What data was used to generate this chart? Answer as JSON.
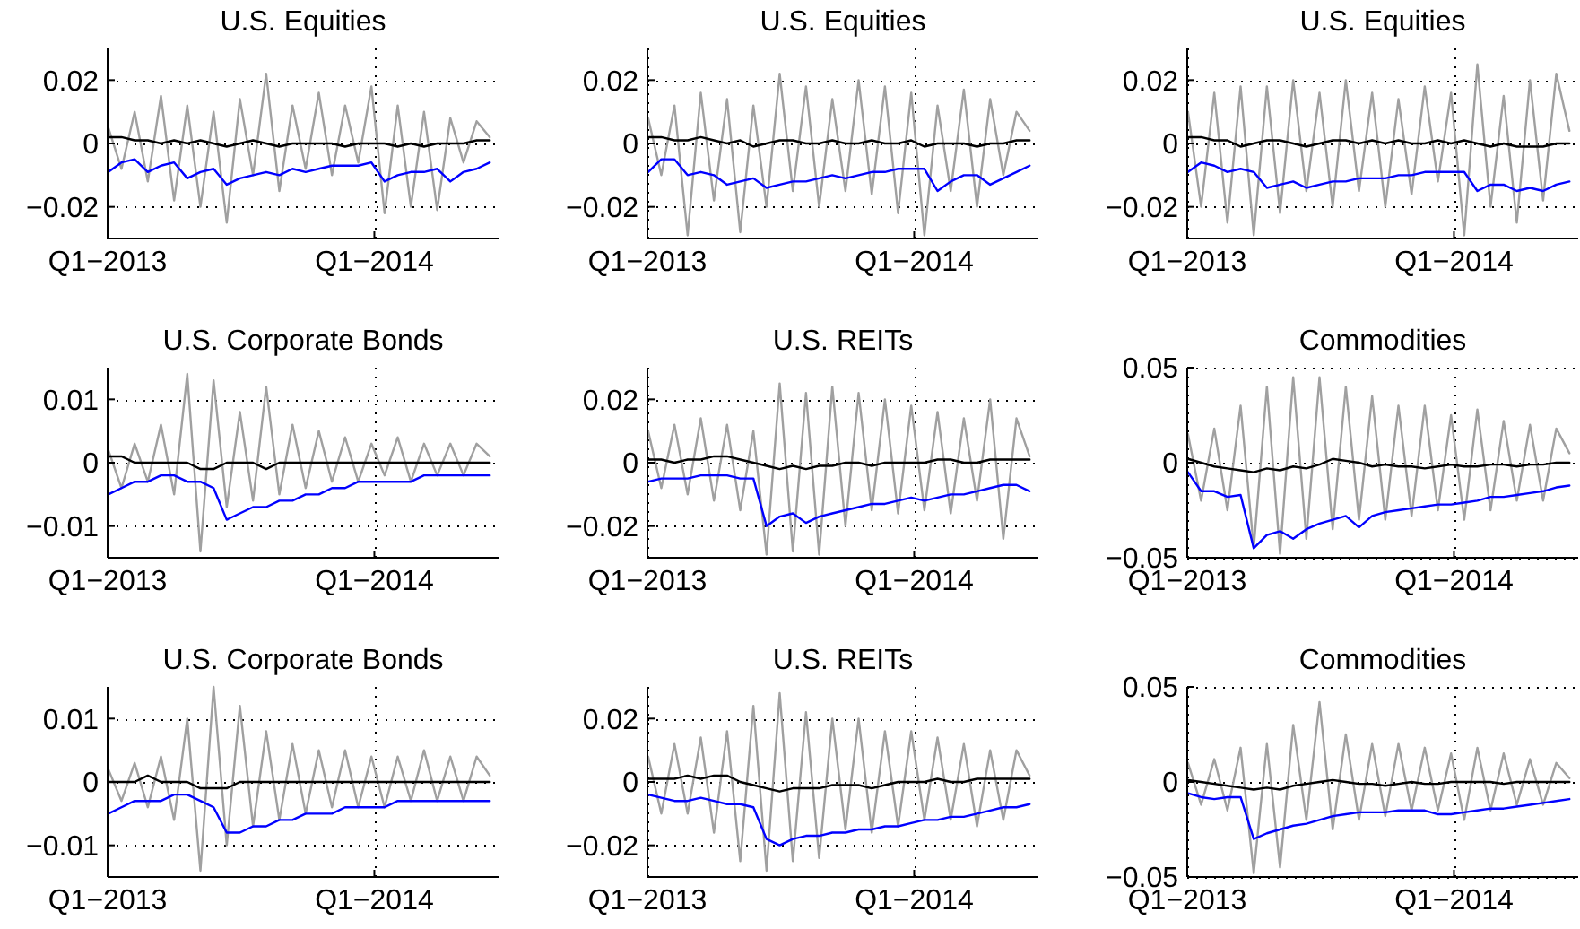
{
  "chart_data": [
    {
      "type": "line",
      "title": "U.S. Equities",
      "x": [
        "2013-01-02",
        "2013-01-20",
        "2013-02-07",
        "2013-02-25",
        "2013-03-15",
        "2013-04-02",
        "2013-04-20",
        "2013-05-08",
        "2013-05-26",
        "2013-06-13",
        "2013-07-01",
        "2013-07-19",
        "2013-08-06",
        "2013-08-24",
        "2013-09-11",
        "2013-09-29",
        "2013-10-17",
        "2013-11-04",
        "2013-11-22",
        "2013-12-10",
        "2013-12-28",
        "2014-01-15",
        "2014-02-02",
        "2014-02-20",
        "2014-03-10",
        "2014-03-28",
        "2014-04-15",
        "2014-05-03",
        "2014-05-21",
        "2014-06-08"
      ],
      "xlim": [
        "2013-01-01",
        "2014-06-20"
      ],
      "xticks": [
        {
          "value": "2013-01-01",
          "label": "Q1−2013"
        },
        {
          "value": "2014-01-01",
          "label": "Q1−2014"
        }
      ],
      "ylim": [
        -0.03,
        0.03
      ],
      "yticks": [
        {
          "value": -0.02,
          "label": "−0.02"
        },
        0,
        0.02
      ],
      "grid": true,
      "series": [
        {
          "color": "#a0a0a0",
          "values": [
            0.005,
            -0.008,
            0.01,
            -0.012,
            0.015,
            -0.018,
            0.012,
            -0.02,
            0.01,
            -0.025,
            0.014,
            -0.01,
            0.022,
            -0.015,
            0.012,
            -0.008,
            0.016,
            -0.01,
            0.012,
            -0.006,
            0.018,
            -0.022,
            0.012,
            -0.02,
            0.01,
            -0.021,
            0.008,
            -0.006,
            0.007,
            0.002
          ]
        },
        {
          "color": "#000000",
          "values": [
            0.002,
            0.002,
            0.001,
            0.001,
            0.0,
            0.001,
            0.0,
            0.001,
            0.0,
            -0.001,
            0.0,
            0.001,
            0.0,
            -0.001,
            0.0,
            0.0,
            0.0,
            0.0,
            -0.001,
            0.0,
            0.0,
            0.0,
            -0.001,
            0.0,
            -0.001,
            0.0,
            0.0,
            0.0,
            0.001,
            0.001
          ]
        },
        {
          "color": "#0000ff",
          "values": [
            -0.009,
            -0.006,
            -0.005,
            -0.009,
            -0.007,
            -0.006,
            -0.011,
            -0.009,
            -0.008,
            -0.013,
            -0.011,
            -0.01,
            -0.009,
            -0.01,
            -0.008,
            -0.009,
            -0.008,
            -0.007,
            -0.007,
            -0.007,
            -0.006,
            -0.012,
            -0.01,
            -0.009,
            -0.009,
            -0.008,
            -0.012,
            -0.009,
            -0.008,
            -0.006
          ]
        }
      ]
    },
    {
      "type": "line",
      "title": "U.S. Equities",
      "x": [
        "2013-01-02",
        "2013-01-20",
        "2013-02-07",
        "2013-02-25",
        "2013-03-15",
        "2013-04-02",
        "2013-04-20",
        "2013-05-08",
        "2013-05-26",
        "2013-06-13",
        "2013-07-01",
        "2013-07-19",
        "2013-08-06",
        "2013-08-24",
        "2013-09-11",
        "2013-09-29",
        "2013-10-17",
        "2013-11-04",
        "2013-11-22",
        "2013-12-10",
        "2013-12-28",
        "2014-01-15",
        "2014-02-02",
        "2014-02-20",
        "2014-03-10",
        "2014-03-28",
        "2014-04-15",
        "2014-05-03",
        "2014-05-21",
        "2014-06-08"
      ],
      "xlim": [
        "2013-01-01",
        "2014-06-20"
      ],
      "xticks": [
        {
          "value": "2013-01-01",
          "label": "Q1−2013"
        },
        {
          "value": "2014-01-01",
          "label": "Q1−2014"
        }
      ],
      "ylim": [
        -0.03,
        0.03
      ],
      "yticks": [
        {
          "value": -0.02,
          "label": "−0.02"
        },
        0,
        0.02
      ],
      "grid": true,
      "series": [
        {
          "color": "#a0a0a0",
          "values": [
            0.008,
            -0.01,
            0.012,
            -0.029,
            0.016,
            -0.018,
            0.014,
            -0.028,
            0.012,
            -0.02,
            0.022,
            -0.015,
            0.018,
            -0.02,
            0.014,
            -0.015,
            0.02,
            -0.016,
            0.018,
            -0.022,
            0.016,
            -0.029,
            0.012,
            -0.015,
            0.017,
            -0.02,
            0.014,
            -0.01,
            0.01,
            0.004
          ]
        },
        {
          "color": "#000000",
          "values": [
            0.002,
            0.002,
            0.001,
            0.001,
            0.002,
            0.001,
            0.0,
            0.001,
            -0.001,
            0.0,
            0.001,
            0.001,
            0.0,
            0.0,
            0.001,
            0.0,
            0.0,
            0.001,
            0.0,
            0.0,
            0.001,
            -0.001,
            0.0,
            0.0,
            0.0,
            -0.001,
            0.0,
            0.0,
            0.001,
            0.001
          ]
        },
        {
          "color": "#0000ff",
          "values": [
            -0.009,
            -0.005,
            -0.005,
            -0.01,
            -0.009,
            -0.01,
            -0.013,
            -0.012,
            -0.011,
            -0.014,
            -0.013,
            -0.012,
            -0.012,
            -0.011,
            -0.01,
            -0.011,
            -0.01,
            -0.009,
            -0.009,
            -0.008,
            -0.008,
            -0.008,
            -0.015,
            -0.012,
            -0.01,
            -0.01,
            -0.013,
            -0.011,
            -0.009,
            -0.007
          ]
        }
      ]
    },
    {
      "type": "line",
      "title": "U.S. Equities",
      "x": [
        "2013-01-02",
        "2013-01-20",
        "2013-02-07",
        "2013-02-25",
        "2013-03-15",
        "2013-04-02",
        "2013-04-20",
        "2013-05-08",
        "2013-05-26",
        "2013-06-13",
        "2013-07-01",
        "2013-07-19",
        "2013-08-06",
        "2013-08-24",
        "2013-09-11",
        "2013-09-29",
        "2013-10-17",
        "2013-11-04",
        "2013-11-22",
        "2013-12-10",
        "2013-12-28",
        "2014-01-15",
        "2014-02-02",
        "2014-02-20",
        "2014-03-10",
        "2014-03-28",
        "2014-04-15",
        "2014-05-03",
        "2014-05-21",
        "2014-06-08"
      ],
      "xlim": [
        "2013-01-01",
        "2014-06-20"
      ],
      "xticks": [
        {
          "value": "2013-01-01",
          "label": "Q1−2013"
        },
        {
          "value": "2014-01-01",
          "label": "Q1−2014"
        }
      ],
      "ylim": [
        -0.03,
        0.03
      ],
      "yticks": [
        {
          "value": -0.02,
          "label": "−0.02"
        },
        0,
        0.02
      ],
      "grid": true,
      "series": [
        {
          "color": "#a0a0a0",
          "values": [
            0.01,
            -0.02,
            0.016,
            -0.025,
            0.018,
            -0.029,
            0.018,
            -0.022,
            0.02,
            -0.015,
            0.016,
            -0.02,
            0.02,
            -0.015,
            0.016,
            -0.02,
            0.014,
            -0.016,
            0.018,
            -0.012,
            0.016,
            -0.029,
            0.025,
            -0.02,
            0.015,
            -0.025,
            0.02,
            -0.018,
            0.022,
            0.004
          ]
        },
        {
          "color": "#000000",
          "values": [
            0.002,
            0.002,
            0.001,
            0.001,
            -0.001,
            0.0,
            0.001,
            0.001,
            0.0,
            -0.001,
            0.0,
            0.001,
            0.001,
            0.0,
            0.001,
            0.0,
            0.001,
            0.0,
            0.0,
            0.001,
            0.0,
            0.001,
            0.0,
            -0.001,
            0.0,
            -0.001,
            -0.001,
            -0.001,
            0.0,
            0.0
          ]
        },
        {
          "color": "#0000ff",
          "values": [
            -0.009,
            -0.006,
            -0.007,
            -0.009,
            -0.008,
            -0.009,
            -0.014,
            -0.013,
            -0.012,
            -0.014,
            -0.013,
            -0.012,
            -0.012,
            -0.011,
            -0.011,
            -0.011,
            -0.01,
            -0.01,
            -0.009,
            -0.009,
            -0.009,
            -0.009,
            -0.015,
            -0.013,
            -0.013,
            -0.015,
            -0.014,
            -0.015,
            -0.013,
            -0.012
          ]
        }
      ]
    },
    {
      "type": "line",
      "title": "U.S. Corporate Bonds",
      "x": [
        "2013-01-02",
        "2013-01-20",
        "2013-02-07",
        "2013-02-25",
        "2013-03-15",
        "2013-04-02",
        "2013-04-20",
        "2013-05-08",
        "2013-05-26",
        "2013-06-13",
        "2013-07-01",
        "2013-07-19",
        "2013-08-06",
        "2013-08-24",
        "2013-09-11",
        "2013-09-29",
        "2013-10-17",
        "2013-11-04",
        "2013-11-22",
        "2013-12-10",
        "2013-12-28",
        "2014-01-15",
        "2014-02-02",
        "2014-02-20",
        "2014-03-10",
        "2014-03-28",
        "2014-04-15",
        "2014-05-03",
        "2014-05-21",
        "2014-06-08"
      ],
      "xlim": [
        "2013-01-01",
        "2014-06-20"
      ],
      "xticks": [
        {
          "value": "2013-01-01",
          "label": "Q1−2013"
        },
        {
          "value": "2014-01-01",
          "label": "Q1−2014"
        }
      ],
      "ylim": [
        -0.015,
        0.015
      ],
      "yticks": [
        {
          "value": -0.01,
          "label": "−0.01"
        },
        0,
        0.01
      ],
      "grid": true,
      "series": [
        {
          "color": "#a0a0a0",
          "values": [
            0.002,
            -0.004,
            0.003,
            -0.003,
            0.006,
            -0.005,
            0.014,
            -0.014,
            0.013,
            -0.007,
            0.008,
            -0.006,
            0.012,
            -0.005,
            0.006,
            -0.004,
            0.005,
            -0.003,
            0.004,
            -0.003,
            0.003,
            -0.002,
            0.004,
            -0.003,
            0.003,
            -0.002,
            0.003,
            -0.002,
            0.003,
            0.001
          ]
        },
        {
          "color": "#000000",
          "values": [
            0.001,
            0.001,
            0.0,
            0.0,
            0.0,
            0.0,
            0.0,
            -0.001,
            -0.001,
            0.0,
            0.0,
            0.0,
            -0.001,
            0.0,
            0.0,
            0.0,
            0.0,
            0.0,
            0.0,
            0.0,
            0.0,
            0.0,
            0.0,
            0.0,
            0.0,
            0.0,
            0.0,
            0.0,
            0.0,
            0.0
          ]
        },
        {
          "color": "#0000ff",
          "values": [
            -0.005,
            -0.004,
            -0.003,
            -0.003,
            -0.002,
            -0.002,
            -0.003,
            -0.003,
            -0.004,
            -0.009,
            -0.008,
            -0.007,
            -0.007,
            -0.006,
            -0.006,
            -0.005,
            -0.005,
            -0.004,
            -0.004,
            -0.003,
            -0.003,
            -0.003,
            -0.003,
            -0.003,
            -0.002,
            -0.002,
            -0.002,
            -0.002,
            -0.002,
            -0.002
          ]
        }
      ]
    },
    {
      "type": "line",
      "title": "U.S. REITs",
      "x": [
        "2013-01-02",
        "2013-01-20",
        "2013-02-07",
        "2013-02-25",
        "2013-03-15",
        "2013-04-02",
        "2013-04-20",
        "2013-05-08",
        "2013-05-26",
        "2013-06-13",
        "2013-07-01",
        "2013-07-19",
        "2013-08-06",
        "2013-08-24",
        "2013-09-11",
        "2013-09-29",
        "2013-10-17",
        "2013-11-04",
        "2013-11-22",
        "2013-12-10",
        "2013-12-28",
        "2014-01-15",
        "2014-02-02",
        "2014-02-20",
        "2014-03-10",
        "2014-03-28",
        "2014-04-15",
        "2014-05-03",
        "2014-05-21",
        "2014-06-08"
      ],
      "xlim": [
        "2013-01-01",
        "2014-06-20"
      ],
      "xticks": [
        {
          "value": "2013-01-01",
          "label": "Q1−2013"
        },
        {
          "value": "2014-01-01",
          "label": "Q1−2014"
        }
      ],
      "ylim": [
        -0.03,
        0.03
      ],
      "yticks": [
        {
          "value": -0.02,
          "label": "−0.02"
        },
        0,
        0.02
      ],
      "grid": true,
      "series": [
        {
          "color": "#a0a0a0",
          "values": [
            0.01,
            -0.008,
            0.012,
            -0.01,
            0.014,
            -0.012,
            0.012,
            -0.015,
            0.01,
            -0.029,
            0.025,
            -0.028,
            0.022,
            -0.029,
            0.024,
            -0.02,
            0.022,
            -0.015,
            0.02,
            -0.016,
            0.018,
            -0.015,
            0.016,
            -0.016,
            0.014,
            -0.012,
            0.02,
            -0.024,
            0.014,
            0.002
          ]
        },
        {
          "color": "#000000",
          "values": [
            0.001,
            0.001,
            0.0,
            0.001,
            0.001,
            0.002,
            0.002,
            0.001,
            0.0,
            -0.001,
            -0.002,
            -0.001,
            -0.002,
            -0.001,
            -0.001,
            0.0,
            0.0,
            -0.001,
            0.0,
            0.0,
            0.0,
            0.0,
            0.001,
            0.001,
            0.0,
            0.0,
            0.001,
            0.001,
            0.001,
            0.001
          ]
        },
        {
          "color": "#0000ff",
          "values": [
            -0.006,
            -0.005,
            -0.005,
            -0.005,
            -0.004,
            -0.004,
            -0.004,
            -0.005,
            -0.005,
            -0.02,
            -0.017,
            -0.016,
            -0.019,
            -0.017,
            -0.016,
            -0.015,
            -0.014,
            -0.013,
            -0.013,
            -0.012,
            -0.011,
            -0.012,
            -0.011,
            -0.01,
            -0.01,
            -0.009,
            -0.008,
            -0.007,
            -0.007,
            -0.009
          ]
        }
      ]
    },
    {
      "type": "line",
      "title": "Commodities",
      "x": [
        "2013-01-02",
        "2013-01-20",
        "2013-02-07",
        "2013-02-25",
        "2013-03-15",
        "2013-04-02",
        "2013-04-20",
        "2013-05-08",
        "2013-05-26",
        "2013-06-13",
        "2013-07-01",
        "2013-07-19",
        "2013-08-06",
        "2013-08-24",
        "2013-09-11",
        "2013-09-29",
        "2013-10-17",
        "2013-11-04",
        "2013-11-22",
        "2013-12-10",
        "2013-12-28",
        "2014-01-15",
        "2014-02-02",
        "2014-02-20",
        "2014-03-10",
        "2014-03-28",
        "2014-04-15",
        "2014-05-03",
        "2014-05-21",
        "2014-06-08"
      ],
      "xlim": [
        "2013-01-01",
        "2014-06-20"
      ],
      "xticks": [
        {
          "value": "2013-01-01",
          "label": "Q1−2013"
        },
        {
          "value": "2014-01-01",
          "label": "Q1−2014"
        }
      ],
      "ylim": [
        -0.05,
        0.05
      ],
      "yticks": [
        {
          "value": -0.05,
          "label": "−0.05"
        },
        0,
        0.05
      ],
      "grid": true,
      "series": [
        {
          "color": "#a0a0a0",
          "values": [
            0.015,
            -0.02,
            0.018,
            -0.025,
            0.03,
            -0.045,
            0.04,
            -0.048,
            0.045,
            -0.04,
            0.045,
            -0.035,
            0.04,
            -0.03,
            0.035,
            -0.03,
            0.03,
            -0.028,
            0.03,
            -0.025,
            0.025,
            -0.03,
            0.028,
            -0.025,
            0.022,
            -0.02,
            0.02,
            -0.02,
            0.018,
            0.005
          ]
        },
        {
          "color": "#000000",
          "values": [
            0.002,
            0.0,
            -0.002,
            -0.003,
            -0.004,
            -0.005,
            -0.003,
            -0.004,
            -0.002,
            -0.003,
            -0.001,
            0.002,
            0.001,
            0.0,
            -0.002,
            -0.001,
            -0.002,
            -0.002,
            -0.003,
            -0.002,
            -0.001,
            -0.002,
            -0.002,
            -0.001,
            -0.001,
            -0.002,
            -0.001,
            -0.001,
            0.0,
            0.0
          ]
        },
        {
          "color": "#0000ff",
          "values": [
            -0.005,
            -0.015,
            -0.015,
            -0.018,
            -0.017,
            -0.045,
            -0.038,
            -0.036,
            -0.04,
            -0.035,
            -0.032,
            -0.03,
            -0.028,
            -0.034,
            -0.028,
            -0.026,
            -0.025,
            -0.024,
            -0.023,
            -0.022,
            -0.022,
            -0.021,
            -0.02,
            -0.018,
            -0.018,
            -0.017,
            -0.016,
            -0.015,
            -0.013,
            -0.012
          ]
        }
      ]
    },
    {
      "type": "line",
      "title": "U.S. Corporate Bonds",
      "x": [
        "2013-01-02",
        "2013-01-20",
        "2013-02-07",
        "2013-02-25",
        "2013-03-15",
        "2013-04-02",
        "2013-04-20",
        "2013-05-08",
        "2013-05-26",
        "2013-06-13",
        "2013-07-01",
        "2013-07-19",
        "2013-08-06",
        "2013-08-24",
        "2013-09-11",
        "2013-09-29",
        "2013-10-17",
        "2013-11-04",
        "2013-11-22",
        "2013-12-10",
        "2013-12-28",
        "2014-01-15",
        "2014-02-02",
        "2014-02-20",
        "2014-03-10",
        "2014-03-28",
        "2014-04-15",
        "2014-05-03",
        "2014-05-21",
        "2014-06-08"
      ],
      "xlim": [
        "2013-01-01",
        "2014-06-20"
      ],
      "xticks": [
        {
          "value": "2013-01-01",
          "label": "Q1−2013"
        },
        {
          "value": "2014-01-01",
          "label": "Q1−2014"
        }
      ],
      "ylim": [
        -0.015,
        0.015
      ],
      "yticks": [
        {
          "value": -0.01,
          "label": "−0.01"
        },
        0,
        0.01
      ],
      "grid": true,
      "series": [
        {
          "color": "#a0a0a0",
          "values": [
            0.002,
            -0.003,
            0.003,
            -0.004,
            0.004,
            -0.006,
            0.01,
            -0.014,
            0.015,
            -0.01,
            0.012,
            -0.007,
            0.008,
            -0.006,
            0.006,
            -0.005,
            0.005,
            -0.004,
            0.005,
            -0.004,
            0.004,
            -0.004,
            0.004,
            -0.003,
            0.005,
            -0.003,
            0.004,
            -0.003,
            0.004,
            0.001
          ]
        },
        {
          "color": "#000000",
          "values": [
            0.0,
            0.0,
            0.0,
            0.001,
            0.0,
            0.0,
            0.0,
            -0.001,
            -0.001,
            -0.001,
            0.0,
            0.0,
            0.0,
            0.0,
            0.0,
            0.0,
            0.0,
            0.0,
            0.0,
            0.0,
            0.0,
            0.0,
            0.0,
            0.0,
            0.0,
            0.0,
            0.0,
            0.0,
            0.0,
            0.0
          ]
        },
        {
          "color": "#0000ff",
          "values": [
            -0.005,
            -0.004,
            -0.003,
            -0.003,
            -0.003,
            -0.002,
            -0.002,
            -0.003,
            -0.004,
            -0.008,
            -0.008,
            -0.007,
            -0.007,
            -0.006,
            -0.006,
            -0.005,
            -0.005,
            -0.005,
            -0.004,
            -0.004,
            -0.004,
            -0.004,
            -0.003,
            -0.003,
            -0.003,
            -0.003,
            -0.003,
            -0.003,
            -0.003,
            -0.003
          ]
        }
      ]
    },
    {
      "type": "line",
      "title": "U.S. REITs",
      "x": [
        "2013-01-02",
        "2013-01-20",
        "2013-02-07",
        "2013-02-25",
        "2013-03-15",
        "2013-04-02",
        "2013-04-20",
        "2013-05-08",
        "2013-05-26",
        "2013-06-13",
        "2013-07-01",
        "2013-07-19",
        "2013-08-06",
        "2013-08-24",
        "2013-09-11",
        "2013-09-29",
        "2013-10-17",
        "2013-11-04",
        "2013-11-22",
        "2013-12-10",
        "2013-12-28",
        "2014-01-15",
        "2014-02-02",
        "2014-02-20",
        "2014-03-10",
        "2014-03-28",
        "2014-04-15",
        "2014-05-03",
        "2014-05-21",
        "2014-06-08"
      ],
      "xlim": [
        "2013-01-01",
        "2014-06-20"
      ],
      "xticks": [
        {
          "value": "2013-01-01",
          "label": "Q1−2013"
        },
        {
          "value": "2014-01-01",
          "label": "Q1−2014"
        }
      ],
      "ylim": [
        -0.03,
        0.03
      ],
      "yticks": [
        {
          "value": -0.02,
          "label": "−0.02"
        },
        0,
        0.02
      ],
      "grid": true,
      "series": [
        {
          "color": "#a0a0a0",
          "values": [
            0.008,
            -0.01,
            0.012,
            -0.01,
            0.014,
            -0.016,
            0.016,
            -0.025,
            0.024,
            -0.028,
            0.028,
            -0.025,
            0.022,
            -0.024,
            0.02,
            -0.015,
            0.02,
            -0.016,
            0.016,
            -0.014,
            0.016,
            -0.012,
            0.014,
            -0.012,
            0.012,
            -0.014,
            0.01,
            -0.012,
            0.01,
            0.002
          ]
        },
        {
          "color": "#000000",
          "values": [
            0.001,
            0.001,
            0.001,
            0.002,
            0.001,
            0.002,
            0.002,
            0.0,
            -0.001,
            -0.002,
            -0.003,
            -0.002,
            -0.002,
            -0.002,
            -0.001,
            -0.001,
            -0.001,
            -0.002,
            -0.001,
            0.0,
            0.0,
            0.0,
            0.001,
            0.0,
            0.0,
            0.001,
            0.001,
            0.001,
            0.001,
            0.001
          ]
        },
        {
          "color": "#0000ff",
          "values": [
            -0.004,
            -0.005,
            -0.006,
            -0.006,
            -0.005,
            -0.006,
            -0.007,
            -0.007,
            -0.008,
            -0.018,
            -0.02,
            -0.018,
            -0.017,
            -0.017,
            -0.016,
            -0.016,
            -0.015,
            -0.015,
            -0.014,
            -0.014,
            -0.013,
            -0.012,
            -0.012,
            -0.011,
            -0.011,
            -0.01,
            -0.009,
            -0.008,
            -0.008,
            -0.007
          ]
        }
      ]
    },
    {
      "type": "line",
      "title": "Commodities",
      "x": [
        "2013-01-02",
        "2013-01-20",
        "2013-02-07",
        "2013-02-25",
        "2013-03-15",
        "2013-04-02",
        "2013-04-20",
        "2013-05-08",
        "2013-05-26",
        "2013-06-13",
        "2013-07-01",
        "2013-07-19",
        "2013-08-06",
        "2013-08-24",
        "2013-09-11",
        "2013-09-29",
        "2013-10-17",
        "2013-11-04",
        "2013-11-22",
        "2013-12-10",
        "2013-12-28",
        "2014-01-15",
        "2014-02-02",
        "2014-02-20",
        "2014-03-10",
        "2014-03-28",
        "2014-04-15",
        "2014-05-03",
        "2014-05-21",
        "2014-06-08"
      ],
      "xlim": [
        "2013-01-01",
        "2014-06-20"
      ],
      "xticks": [
        {
          "value": "2013-01-01",
          "label": "Q1−2013"
        },
        {
          "value": "2014-01-01",
          "label": "Q1−2014"
        }
      ],
      "ylim": [
        -0.05,
        0.05
      ],
      "yticks": [
        {
          "value": -0.05,
          "label": "−0.05"
        },
        0,
        0.05
      ],
      "grid": true,
      "series": [
        {
          "color": "#a0a0a0",
          "values": [
            0.01,
            -0.012,
            0.012,
            -0.015,
            0.018,
            -0.048,
            0.02,
            -0.045,
            0.03,
            -0.02,
            0.042,
            -0.025,
            0.025,
            -0.02,
            0.02,
            -0.018,
            0.02,
            -0.015,
            0.018,
            -0.015,
            0.015,
            -0.02,
            0.018,
            -0.015,
            0.015,
            -0.012,
            0.012,
            -0.012,
            0.01,
            0.002
          ]
        },
        {
          "color": "#000000",
          "values": [
            0.001,
            0.0,
            -0.001,
            -0.002,
            -0.003,
            -0.004,
            -0.003,
            -0.004,
            -0.002,
            -0.001,
            0.0,
            0.001,
            0.0,
            -0.001,
            -0.001,
            -0.002,
            -0.001,
            0.0,
            -0.001,
            -0.001,
            0.0,
            0.0,
            0.0,
            0.0,
            -0.001,
            0.0,
            0.0,
            0.0,
            0.0,
            0.0
          ]
        },
        {
          "color": "#0000ff",
          "values": [
            -0.006,
            -0.008,
            -0.009,
            -0.008,
            -0.008,
            -0.03,
            -0.027,
            -0.025,
            -0.023,
            -0.022,
            -0.02,
            -0.018,
            -0.017,
            -0.016,
            -0.016,
            -0.016,
            -0.015,
            -0.015,
            -0.015,
            -0.017,
            -0.017,
            -0.016,
            -0.015,
            -0.014,
            -0.014,
            -0.013,
            -0.012,
            -0.011,
            -0.01,
            -0.009
          ]
        }
      ]
    }
  ]
}
